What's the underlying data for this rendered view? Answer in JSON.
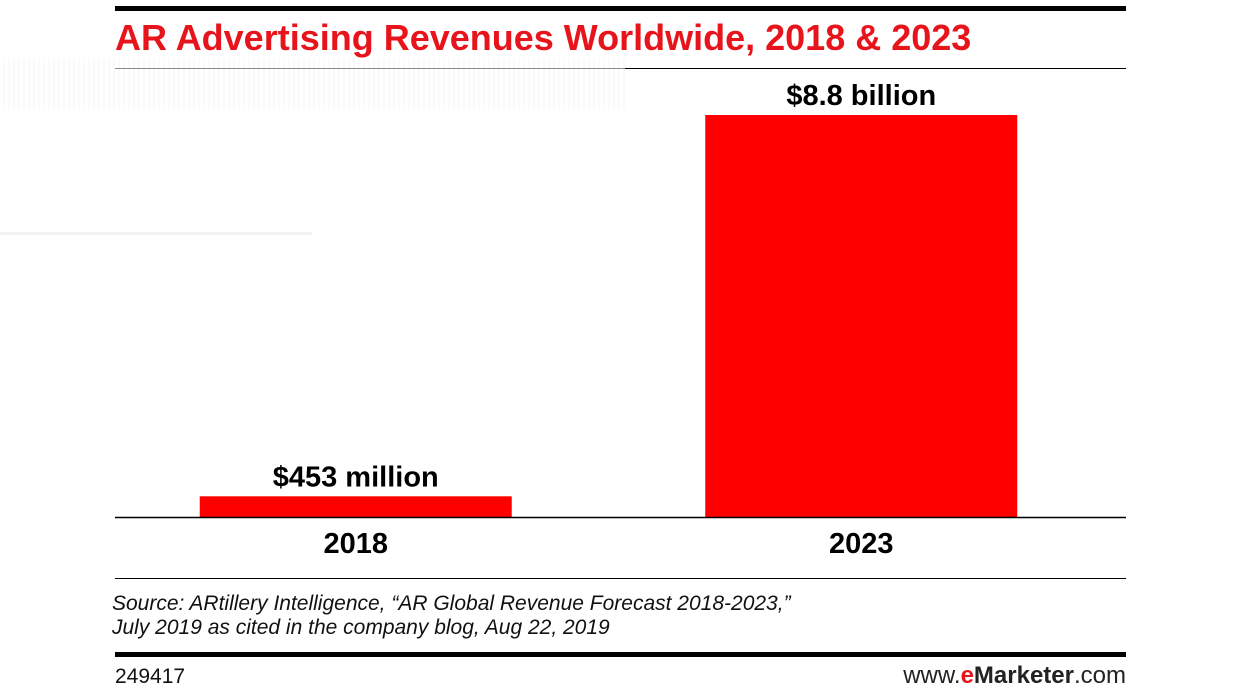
{
  "colors": {
    "title": "#e8141b",
    "bar": "#ff0000",
    "text": "#000000",
    "brand_accent": "#e8141b",
    "brand_text": "#222222"
  },
  "chart_data": {
    "type": "bar",
    "title": "AR Advertising Revenues Worldwide, 2018 & 2023",
    "categories": [
      "2018",
      "2023"
    ],
    "values": [
      0.453,
      8.8
    ],
    "value_labels": [
      "$453 million",
      "$8.8 billion"
    ],
    "unit": "billions of US dollars",
    "ylim": [
      0,
      8.8
    ],
    "grid": false,
    "legend": "none"
  },
  "footer": {
    "source_lines": [
      "Source: ARtillery Intelligence, “AR Global Revenue Forecast 2018-2023,”",
      "July 2019 as cited in the company blog, Aug 22, 2019"
    ],
    "chart_id": "249417",
    "brand_prefix": "www.",
    "brand_accent": "e",
    "brand_main": "Marketer",
    "brand_suffix": ".com"
  }
}
